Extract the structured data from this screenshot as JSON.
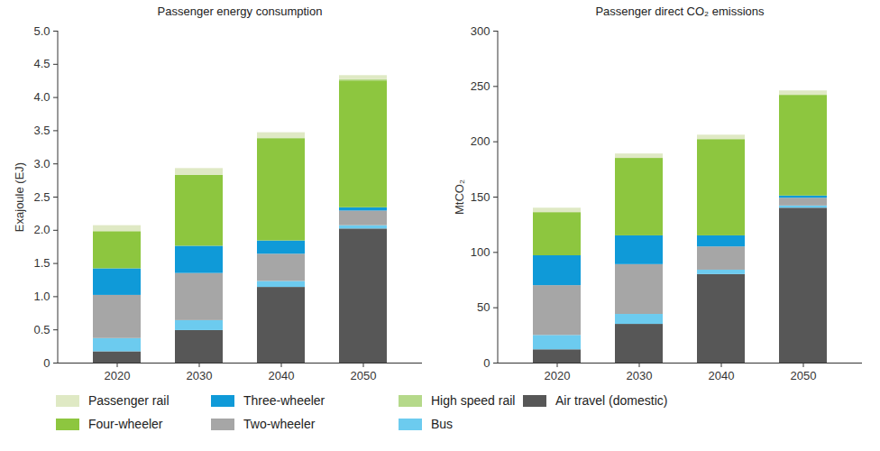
{
  "chart_data": [
    {
      "type": "bar",
      "title": "Passenger energy consumption",
      "y_label": "Exajoule (EJ)",
      "stacked": true,
      "legend": "bottom",
      "grid": false,
      "categories": [
        "2020",
        "2030",
        "2040",
        "2050"
      ],
      "ylim": [
        0,
        5
      ],
      "yticks": [
        0,
        0.5,
        {
          "value": 1,
          "label": "1.0"
        },
        1.5,
        {
          "value": 2,
          "label": "2.0"
        },
        2.5,
        {
          "value": 3,
          "label": "3.0"
        },
        3.5,
        {
          "value": 4,
          "label": "4.0"
        },
        4.5,
        {
          "value": 5,
          "label": "5.0"
        }
      ],
      "series": [
        {
          "name": "Air travel (domestic)",
          "color": "#575757",
          "values": [
            0.17,
            0.49,
            1.14,
            2.02
          ]
        },
        {
          "name": "Bus",
          "color": "#6ccbef",
          "values": [
            0.2,
            0.15,
            0.09,
            0.05
          ]
        },
        {
          "name": "Two-wheeler",
          "color": "#a6a6a6",
          "values": [
            0.65,
            0.71,
            0.41,
            0.22
          ]
        },
        {
          "name": "Three-wheeler",
          "color": "#0f9ad8",
          "values": [
            0.4,
            0.41,
            0.2,
            0.05
          ]
        },
        {
          "name": "Four-wheeler",
          "color": "#8dc63f",
          "values": [
            0.56,
            1.07,
            1.54,
            1.91
          ]
        },
        {
          "name": "High speed rail",
          "color": "#b5d98a",
          "values": [
            0,
            0,
            0.01,
            0.02
          ]
        },
        {
          "name": "Passenger rail",
          "color": "#dfe9c4",
          "values": [
            0.09,
            0.1,
            0.08,
            0.06
          ]
        }
      ]
    },
    {
      "type": "bar",
      "title": "Passenger direct CO₂ emissions",
      "y_label": "MtCO₂",
      "stacked": true,
      "legend": "bottom",
      "grid": false,
      "categories": [
        "2020",
        "2030",
        "2040",
        "2050"
      ],
      "ylim": [
        0,
        300
      ],
      "yticks": [
        0,
        50,
        100,
        150,
        200,
        250,
        300
      ],
      "series": [
        {
          "name": "Air travel (domestic)",
          "color": "#575757",
          "values": [
            12,
            35,
            80,
            140
          ]
        },
        {
          "name": "Bus",
          "color": "#6ccbef",
          "values": [
            13,
            9,
            4,
            2
          ]
        },
        {
          "name": "Two-wheeler",
          "color": "#a6a6a6",
          "values": [
            45,
            45,
            21,
            7
          ]
        },
        {
          "name": "Three-wheeler",
          "color": "#0f9ad8",
          "values": [
            27,
            26,
            10,
            2
          ]
        },
        {
          "name": "Four-wheeler",
          "color": "#8dc63f",
          "values": [
            39,
            70,
            87,
            91
          ]
        },
        {
          "name": "High speed rail",
          "color": "#b5d98a",
          "values": [
            0,
            0,
            0,
            0
          ]
        },
        {
          "name": "Passenger rail",
          "color": "#dfe9c4",
          "values": [
            4,
            4,
            4,
            4
          ]
        }
      ]
    }
  ]
}
